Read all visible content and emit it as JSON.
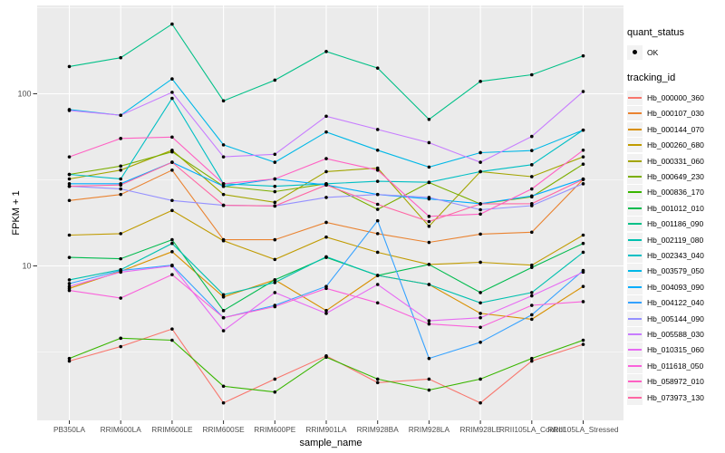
{
  "figure": {
    "x_axis_title": "sample_name",
    "y_axis_title": "FPKM + 1",
    "legend": {
      "quant_status_title": "quant_status",
      "quant_status_items": [
        {
          "label": "OK",
          "marker": "point-icon",
          "color": "#000000"
        }
      ],
      "tracking_title": "tracking_id"
    },
    "colors": {
      "panel_background": "#EBEBEB",
      "gridline": "#FFFFFF",
      "tick_text": "#4D4D4D",
      "tick_mark": "#333333",
      "point": "#000000",
      "legend_key_background": "#F2F2F2"
    }
  },
  "chart_data": {
    "type": "line",
    "title": "",
    "xlabel": "sample_name",
    "ylabel": "FPKM + 1",
    "y_scale": "log10",
    "ylim": [
      1.25,
      330
    ],
    "grid": true,
    "legend_position": "right",
    "y_tick_labels": [
      "100",
      "10"
    ],
    "y_major_ticks": [
      100,
      10
    ],
    "y_minor_gridlines": [
      316.23,
      31.623,
      3.1623
    ],
    "point_color": "#000000",
    "categories": [
      "PB350LA",
      "RRIM600LA",
      "RRIM600LE",
      "RRIM600SE",
      "RRIM600PE",
      "RRIM901LA",
      "RRIM928BA",
      "RRIM928LA",
      "RRIM928LE",
      "RRII105LA_Control",
      "RRII105LA_Stressed"
    ],
    "series": [
      {
        "name": "Hb_000000_360",
        "color": "#F8766D",
        "values": [
          2.8,
          3.4,
          4.3,
          1.6,
          2.2,
          3.0,
          2.1,
          2.2,
          1.6,
          2.8,
          3.5
        ]
      },
      {
        "name": "Hb_000107_030",
        "color": "#EA8331",
        "values": [
          24,
          26,
          36,
          14.2,
          14.2,
          17.9,
          15.4,
          13.7,
          15.3,
          15.7,
          31.8
        ]
      },
      {
        "name": "Hb_000144_070",
        "color": "#D89000",
        "values": [
          7.4,
          9.3,
          12.1,
          6.6,
          8.3,
          5.5,
          8.8,
          7.8,
          5.3,
          4.9,
          7.6
        ]
      },
      {
        "name": "Hb_000260_680",
        "color": "#C09B00",
        "values": [
          15.1,
          15.4,
          21.0,
          14.0,
          10.9,
          14.7,
          12.0,
          10.2,
          10.5,
          10.1,
          15.1
        ]
      },
      {
        "name": "Hb_000331_060",
        "color": "#A3A500",
        "values": [
          32,
          36,
          47,
          26,
          23.4,
          35.3,
          37,
          17.0,
          35.3,
          33,
          43
        ]
      },
      {
        "name": "Hb_000649_230",
        "color": "#7CAE00",
        "values": [
          34,
          38,
          46,
          29,
          27,
          30,
          21.3,
          30.5,
          22.9,
          25.2,
          39
        ]
      },
      {
        "name": "Hb_000836_170",
        "color": "#39B600",
        "values": [
          2.9,
          3.8,
          3.7,
          2.0,
          1.85,
          2.95,
          2.2,
          1.9,
          2.2,
          2.9,
          3.7
        ]
      },
      {
        "name": "Hb_001012_010",
        "color": "#00BB4E",
        "values": [
          11.2,
          11.0,
          14.2,
          5.5,
          8.3,
          11.2,
          8.8,
          10.2,
          7.0,
          9.8,
          13.5
        ]
      },
      {
        "name": "Hb_001186_090",
        "color": "#00C087",
        "values": [
          144,
          162,
          254,
          91,
          120,
          176,
          141,
          71,
          118,
          129,
          166
        ]
      },
      {
        "name": "Hb_002119_080",
        "color": "#00C0AF",
        "values": [
          8.3,
          9.5,
          13.5,
          6.8,
          8.0,
          11.3,
          8.8,
          7.8,
          6.1,
          7.0,
          12.0
        ]
      },
      {
        "name": "Hb_002343_040",
        "color": "#00BFC4",
        "values": [
          34,
          32,
          94,
          30,
          29,
          30,
          31,
          30.6,
          35.3,
          38.7,
          61.5
        ]
      },
      {
        "name": "Hb_003579_050",
        "color": "#00B8E7",
        "values": [
          81,
          75,
          122,
          50.5,
          40,
          60,
          47,
          37.5,
          45.5,
          46.8,
          61.5
        ]
      },
      {
        "name": "Hb_004093_090",
        "color": "#00ACFC",
        "values": [
          30,
          30,
          40,
          29,
          32,
          29.5,
          26,
          24.5,
          23,
          25.5,
          32
        ]
      },
      {
        "name": "Hb_004122_040",
        "color": "#35A2FF",
        "values": [
          7.9,
          9.4,
          10.1,
          5.0,
          5.9,
          7.6,
          18.3,
          2.9,
          3.6,
          5.2,
          9.4
        ]
      },
      {
        "name": "Hb_005144_090",
        "color": "#9590FF",
        "values": [
          29,
          28,
          24,
          22.5,
          22.3,
          25,
          26,
          25,
          21.2,
          22.4,
          30
        ]
      },
      {
        "name": "Hb_005588_030",
        "color": "#C77CFF",
        "values": [
          80,
          75,
          102,
          43,
          44.5,
          74,
          62,
          52,
          40,
          56.5,
          103
        ]
      },
      {
        "name": "Hb_010315_060",
        "color": "#E76BF3",
        "values": [
          7.6,
          9.2,
          10.0,
          4.2,
          7.0,
          5.3,
          7.8,
          4.8,
          5.0,
          6.7,
          9.2
        ]
      },
      {
        "name": "Hb_011618_050",
        "color": "#FA62DB",
        "values": [
          7.2,
          6.5,
          8.9,
          5.0,
          5.8,
          7.4,
          6.1,
          4.6,
          4.4,
          5.9,
          6.2
        ]
      },
      {
        "name": "Hb_058972_010",
        "color": "#FF61C3",
        "values": [
          43,
          55,
          56,
          30,
          32,
          42,
          36,
          19.4,
          20,
          28,
          47
        ]
      },
      {
        "name": "Hb_073973_130",
        "color": "#FF67A4",
        "values": [
          29,
          29.5,
          40,
          22.5,
          22.3,
          29.5,
          22.8,
          18.1,
          22.9,
          23,
          31.8
        ]
      }
    ]
  }
}
